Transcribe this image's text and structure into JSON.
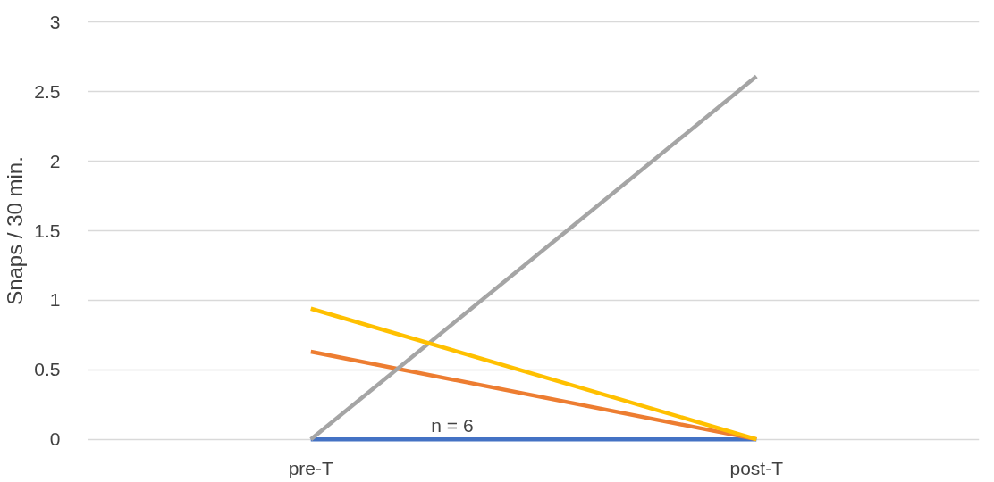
{
  "chart_data": {
    "type": "line",
    "ylabel": "Snaps / 30 min.",
    "categories": [
      "pre-T",
      "post-T"
    ],
    "series": [
      {
        "color": "#4472c4",
        "values": [
          0,
          0
        ]
      },
      {
        "color": "#ed7d31",
        "values": [
          0.63,
          0
        ]
      },
      {
        "color": "#a5a5a5",
        "values": [
          0,
          2.61
        ]
      },
      {
        "color": "#ffc000",
        "values": [
          0.94,
          0
        ]
      }
    ],
    "ylim": [
      0,
      3
    ],
    "yticks": [
      0,
      0.5,
      1,
      1.5,
      2,
      2.5,
      3
    ],
    "grid": "y",
    "marker": "none",
    "line_style": "solid",
    "annotations": [
      "n = 6"
    ]
  }
}
